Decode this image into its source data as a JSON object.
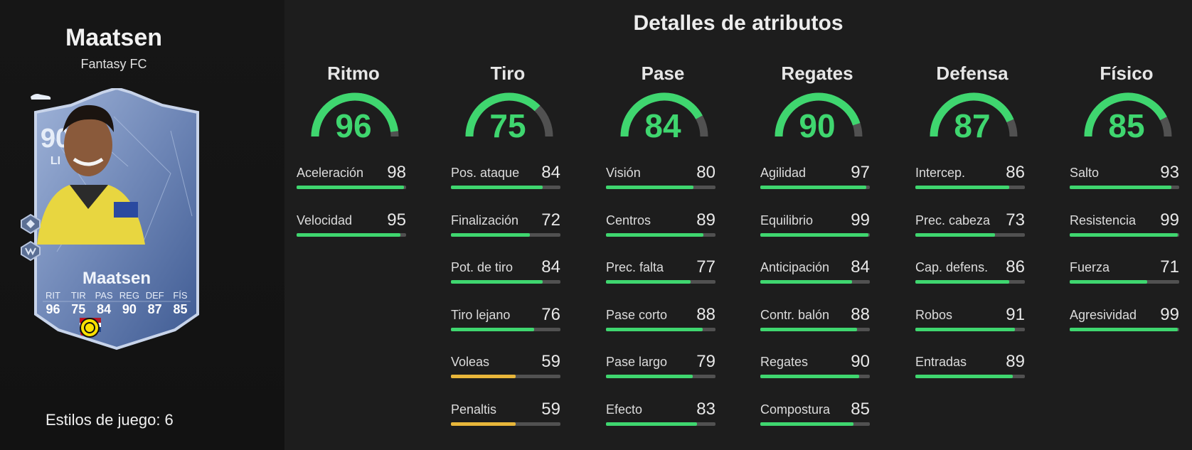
{
  "player": {
    "name": "Maatsen",
    "team": "Fantasy FC",
    "rating": "90",
    "position": "LI",
    "card_name": "Maatsen",
    "card_stats": [
      {
        "label": "RIT",
        "value": "96"
      },
      {
        "label": "TIR",
        "value": "75"
      },
      {
        "label": "PAS",
        "value": "84"
      },
      {
        "label": "REG",
        "value": "90"
      },
      {
        "label": "DEF",
        "value": "87"
      },
      {
        "label": "FÍS",
        "value": "85"
      }
    ],
    "playstyles": "Estilos de juego: 6"
  },
  "section_title": "Detalles de atributos",
  "colors": {
    "green": "#3fd66f",
    "yellow": "#e8b63a",
    "track": "#515151",
    "card_blue": "#7f97c4"
  },
  "categories": [
    {
      "name": "Ritmo",
      "value": 96,
      "stats": [
        {
          "label": "Aceleración",
          "value": 98
        },
        {
          "label": "Velocidad",
          "value": 95
        }
      ]
    },
    {
      "name": "Tiro",
      "value": 75,
      "stats": [
        {
          "label": "Pos. ataque",
          "value": 84
        },
        {
          "label": "Finalización",
          "value": 72
        },
        {
          "label": "Pot. de tiro",
          "value": 84
        },
        {
          "label": "Tiro lejano",
          "value": 76
        },
        {
          "label": "Voleas",
          "value": 59
        },
        {
          "label": "Penaltis",
          "value": 59
        }
      ]
    },
    {
      "name": "Pase",
      "value": 84,
      "stats": [
        {
          "label": "Visión",
          "value": 80
        },
        {
          "label": "Centros",
          "value": 89
        },
        {
          "label": "Prec. falta",
          "value": 77
        },
        {
          "label": "Pase corto",
          "value": 88
        },
        {
          "label": "Pase largo",
          "value": 79
        },
        {
          "label": "Efecto",
          "value": 83
        }
      ]
    },
    {
      "name": "Regates",
      "value": 90,
      "stats": [
        {
          "label": "Agilidad",
          "value": 97
        },
        {
          "label": "Equilibrio",
          "value": 99
        },
        {
          "label": "Anticipación",
          "value": 84
        },
        {
          "label": "Contr. balón",
          "value": 88
        },
        {
          "label": "Regates",
          "value": 90
        },
        {
          "label": "Compostura",
          "value": 85
        }
      ]
    },
    {
      "name": "Defensa",
      "value": 87,
      "stats": [
        {
          "label": "Intercep.",
          "value": 86
        },
        {
          "label": "Prec. cabeza",
          "value": 73
        },
        {
          "label": "Cap. defens.",
          "value": 86
        },
        {
          "label": "Robos",
          "value": 91
        },
        {
          "label": "Entradas",
          "value": 89
        }
      ]
    },
    {
      "name": "Físico",
      "value": 85,
      "stats": [
        {
          "label": "Salto",
          "value": 93
        },
        {
          "label": "Resistencia",
          "value": 99
        },
        {
          "label": "Fuerza",
          "value": 71
        },
        {
          "label": "Agresividad",
          "value": 99
        }
      ]
    }
  ]
}
